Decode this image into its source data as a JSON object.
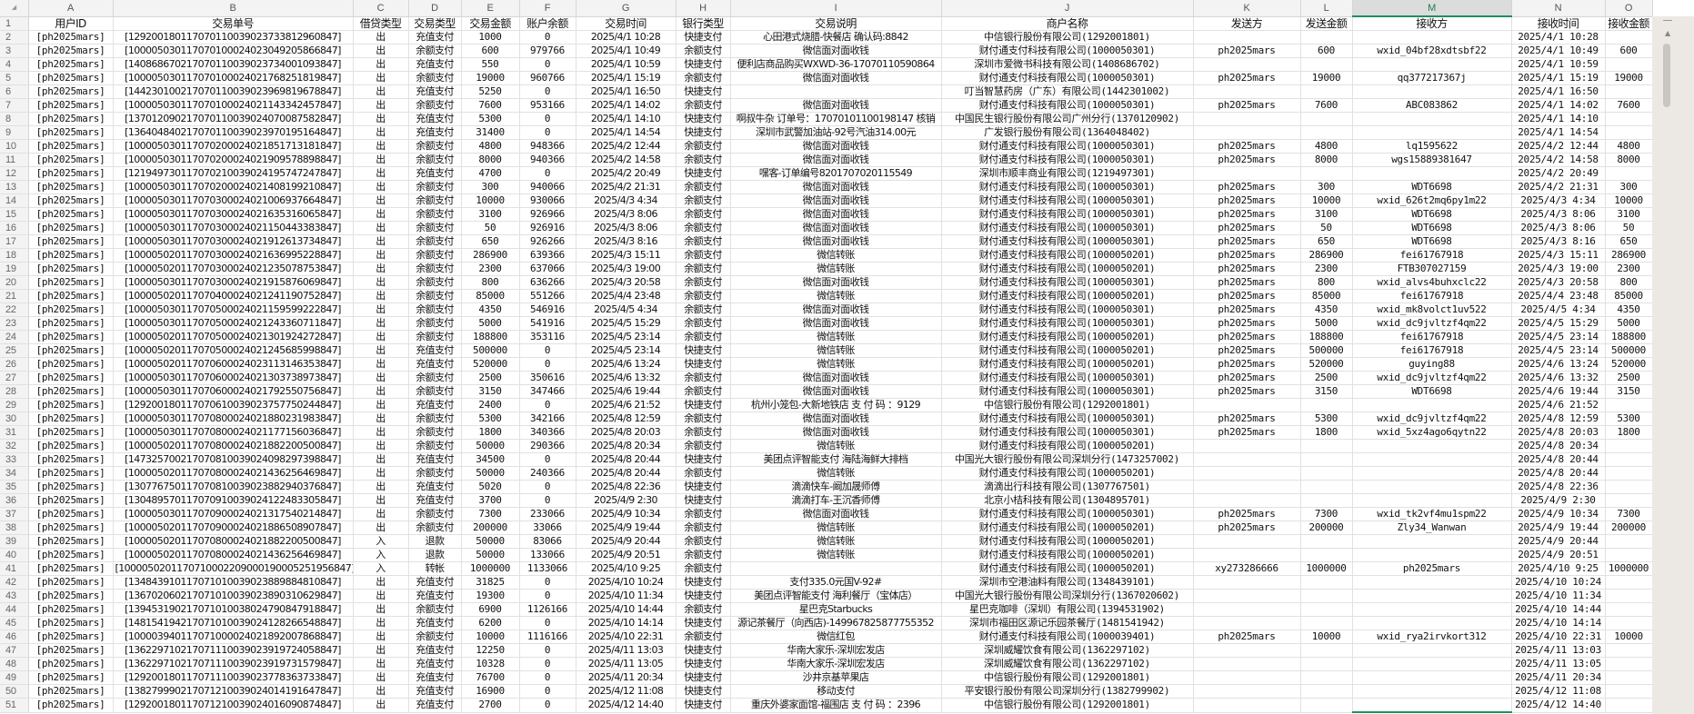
{
  "sheet": {
    "column_letters": [
      "A",
      "B",
      "C",
      "D",
      "E",
      "F",
      "G",
      "H",
      "I",
      "J",
      "K",
      "L",
      "M",
      "N",
      "O"
    ],
    "selected_column": "M",
    "headers": [
      "用户ID",
      "交易单号",
      "借贷类型",
      "交易类型",
      "交易金额",
      "账户余额",
      "交易时间",
      "银行类型",
      "交易说明",
      "商户名称",
      "发送方",
      "发送金额",
      "接收方",
      "接收时间",
      "接收金额"
    ],
    "rows": [
      [
        "[ph2025mars]",
        "[129200180117070110039023733812960847]",
        "出",
        "充值支付",
        "1000",
        "0",
        "2025/4/1 10:28",
        "快捷支付",
        "心田港式烧腊-快餐店 确认码:8842",
        "中信银行股份有限公司(1292001801)",
        "",
        "",
        "",
        "2025/4/1 10:28",
        ""
      ],
      [
        "[ph2025mars]",
        "[100005030117070100024023049205866847]",
        "出",
        "余额支付",
        "600",
        "979766",
        "2025/4/1 10:49",
        "余额支付",
        "微信面对面收钱",
        "财付通支付科技有限公司(1000050301)",
        "ph2025mars",
        "600",
        "wxid_04bf28xdtsbf22",
        "2025/4/1 10:49",
        "600"
      ],
      [
        "[ph2025mars]",
        "[140868670217070110039023734001093847]",
        "出",
        "充值支付",
        "550",
        "0",
        "2025/4/1 10:59",
        "快捷支付",
        "便利店商品购买WXWD-36-17070110590864",
        "深圳市爱微书科技有限公司(1408686702)",
        "",
        "",
        "",
        "2025/4/1 10:59",
        ""
      ],
      [
        "[ph2025mars]",
        "[100005030117070100024021768251819847]",
        "出",
        "余额支付",
        "19000",
        "960766",
        "2025/4/1 15:19",
        "余额支付",
        "微信面对面收钱",
        "财付通支付科技有限公司(1000050301)",
        "ph2025mars",
        "19000",
        "qq377217367j",
        "2025/4/1 15:19",
        "19000"
      ],
      [
        "[ph2025mars]",
        "[144230100217070110039023969819678847]",
        "出",
        "充值支付",
        "5250",
        "0",
        "2025/4/1 16:50",
        "快捷支付",
        "",
        "叮当智慧药房（广东）有限公司(1442301002)",
        "",
        "",
        "",
        "2025/4/1 16:50",
        ""
      ],
      [
        "[ph2025mars]",
        "[100005030117070100024021143342457847]",
        "出",
        "余额支付",
        "7600",
        "953166",
        "2025/4/1 14:02",
        "余额支付",
        "微信面对面收钱",
        "财付通支付科技有限公司(1000050301)",
        "ph2025mars",
        "7600",
        "ABC083862",
        "2025/4/1 14:02",
        "7600"
      ],
      [
        "[ph2025mars]",
        "[137012090217070110039024070087582847]",
        "出",
        "充值支付",
        "5300",
        "0",
        "2025/4/1 14:10",
        "快捷支付",
        "啊叔牛杂 订单号：17070101100198147 核销",
        "中国民生银行股份有限公司广州分行(1370120902)",
        "",
        "",
        "",
        "2025/4/1 14:10",
        ""
      ],
      [
        "[ph2025mars]",
        "[136404840217070110039023970195164847]",
        "出",
        "充值支付",
        "31400",
        "0",
        "2025/4/1 14:54",
        "快捷支付",
        "深圳市武警加油站-92号汽油314.00元",
        "广发银行股份有限公司(1364048402)",
        "",
        "",
        "",
        "2025/4/1 14:54",
        ""
      ],
      [
        "[ph2025mars]",
        "[100005030117070200024021851713181847]",
        "出",
        "余额支付",
        "4800",
        "948366",
        "2025/4/2 12:44",
        "余额支付",
        "微信面对面收钱",
        "财付通支付科技有限公司(1000050301)",
        "ph2025mars",
        "4800",
        "lq1595622",
        "2025/4/2 12:44",
        "4800"
      ],
      [
        "[ph2025mars]",
        "[100005030117070200024021909578898847]",
        "出",
        "余额支付",
        "8000",
        "940366",
        "2025/4/2 14:58",
        "余额支付",
        "微信面对面收钱",
        "财付通支付科技有限公司(1000050301)",
        "ph2025mars",
        "8000",
        "wgs15889381647",
        "2025/4/2 14:58",
        "8000"
      ],
      [
        "[ph2025mars]",
        "[121949730117070210039024195747247847]",
        "出",
        "充值支付",
        "4700",
        "0",
        "2025/4/2 20:49",
        "快捷支付",
        "嘿客-订单编号8201707020115549",
        "深圳市顺丰商业有限公司(1219497301)",
        "",
        "",
        "",
        "2025/4/2 20:49",
        ""
      ],
      [
        "[ph2025mars]",
        "[100005030117070200024021408199210847]",
        "出",
        "余额支付",
        "300",
        "940066",
        "2025/4/2 21:31",
        "余额支付",
        "微信面对面收钱",
        "财付通支付科技有限公司(1000050301)",
        "ph2025mars",
        "300",
        "WDT6698",
        "2025/4/2 21:31",
        "300"
      ],
      [
        "[ph2025mars]",
        "[100005030117070300024021006937664847]",
        "出",
        "余额支付",
        "10000",
        "930066",
        "2025/4/3 4:34",
        "余额支付",
        "微信面对面收钱",
        "财付通支付科技有限公司(1000050301)",
        "ph2025mars",
        "10000",
        "wxid_626t2mq6py1m22",
        "2025/4/3 4:34",
        "10000"
      ],
      [
        "[ph2025mars]",
        "[100005030117070300024021635316065847]",
        "出",
        "余额支付",
        "3100",
        "926966",
        "2025/4/3 8:06",
        "余额支付",
        "微信面对面收钱",
        "财付通支付科技有限公司(1000050301)",
        "ph2025mars",
        "3100",
        "WDT6698",
        "2025/4/3 8:06",
        "3100"
      ],
      [
        "[ph2025mars]",
        "[100005030117070300024021150443383847]",
        "出",
        "余额支付",
        "50",
        "926916",
        "2025/4/3 8:06",
        "余额支付",
        "微信面对面收钱",
        "财付通支付科技有限公司(1000050301)",
        "ph2025mars",
        "50",
        "WDT6698",
        "2025/4/3 8:06",
        "50"
      ],
      [
        "[ph2025mars]",
        "[100005030117070300024021912613734847]",
        "出",
        "余额支付",
        "650",
        "926266",
        "2025/4/3 8:16",
        "余额支付",
        "微信面对面收钱",
        "财付通支付科技有限公司(1000050301)",
        "ph2025mars",
        "650",
        "WDT6698",
        "2025/4/3 8:16",
        "650"
      ],
      [
        "[ph2025mars]",
        "[100005020117070300024021636995228847]",
        "出",
        "余额支付",
        "286900",
        "639366",
        "2025/4/3 15:11",
        "余额支付",
        "微信转账",
        "财付通支付科技有限公司(1000050201)",
        "ph2025mars",
        "286900",
        "fei61767918",
        "2025/4/3 15:11",
        "286900"
      ],
      [
        "[ph2025mars]",
        "[100005020117070300024021235078753847]",
        "出",
        "余额支付",
        "2300",
        "637066",
        "2025/4/3 19:00",
        "余额支付",
        "微信转账",
        "财付通支付科技有限公司(1000050201)",
        "ph2025mars",
        "2300",
        "FTB307027159",
        "2025/4/3 19:00",
        "2300"
      ],
      [
        "[ph2025mars]",
        "[100005030117070300024021915876069847]",
        "出",
        "余额支付",
        "800",
        "636266",
        "2025/4/3 20:58",
        "余额支付",
        "微信面对面收钱",
        "财付通支付科技有限公司(1000050301)",
        "ph2025mars",
        "800",
        "wxid_alvs4buhxclc22",
        "2025/4/3 20:58",
        "800"
      ],
      [
        "[ph2025mars]",
        "[100005020117070400024021241190752847]",
        "出",
        "余额支付",
        "85000",
        "551266",
        "2025/4/4 23:48",
        "余额支付",
        "微信转账",
        "财付通支付科技有限公司(1000050201)",
        "ph2025mars",
        "85000",
        "fei61767918",
        "2025/4/4 23:48",
        "85000"
      ],
      [
        "[ph2025mars]",
        "[100005030117070500024021159599222847]",
        "出",
        "余额支付",
        "4350",
        "546916",
        "2025/4/5 4:34",
        "余额支付",
        "微信面对面收钱",
        "财付通支付科技有限公司(1000050301)",
        "ph2025mars",
        "4350",
        "wxid_mk8volct1uv522",
        "2025/4/5 4:34",
        "4350"
      ],
      [
        "[ph2025mars]",
        "[100005030117070500024021243360711847]",
        "出",
        "余额支付",
        "5000",
        "541916",
        "2025/4/5 15:29",
        "余额支付",
        "微信面对面收钱",
        "财付通支付科技有限公司(1000050301)",
        "ph2025mars",
        "5000",
        "wxid_dc9jvltzf4qm22",
        "2025/4/5 15:29",
        "5000"
      ],
      [
        "[ph2025mars]",
        "[100005020117070500024021301924272847]",
        "出",
        "余额支付",
        "188800",
        "353116",
        "2025/4/5 23:14",
        "余额支付",
        "微信转账",
        "财付通支付科技有限公司(1000050201)",
        "ph2025mars",
        "188800",
        "fei61767918",
        "2025/4/5 23:14",
        "188800"
      ],
      [
        "[ph2025mars]",
        "[100005020117070500024021245685998847]",
        "出",
        "充值支付",
        "500000",
        "0",
        "2025/4/5 23:14",
        "快捷支付",
        "微信转账",
        "财付通支付科技有限公司(1000050201)",
        "ph2025mars",
        "500000",
        "fei61767918",
        "2025/4/5 23:14",
        "500000"
      ],
      [
        "[ph2025mars]",
        "[100005020117070600024023113146353847]",
        "出",
        "充值支付",
        "520000",
        "0",
        "2025/4/6 13:24",
        "快捷支付",
        "微信转账",
        "财付通支付科技有限公司(1000050201)",
        "ph2025mars",
        "520000",
        "guying88",
        "2025/4/6 13:24",
        "520000"
      ],
      [
        "[ph2025mars]",
        "[100005030117070600024021303738973847]",
        "出",
        "余额支付",
        "2500",
        "350616",
        "2025/4/6 13:32",
        "余额支付",
        "微信面对面收钱",
        "财付通支付科技有限公司(1000050301)",
        "ph2025mars",
        "2500",
        "wxid_dc9jvltzf4qm22",
        "2025/4/6 13:32",
        "2500"
      ],
      [
        "[ph2025mars]",
        "[100005030117070600024021792550756847]",
        "出",
        "余额支付",
        "3150",
        "347466",
        "2025/4/6 19:44",
        "余额支付",
        "微信面对面收钱",
        "财付通支付科技有限公司(1000050301)",
        "ph2025mars",
        "3150",
        "WDT6698",
        "2025/4/6 19:44",
        "3150"
      ],
      [
        "[ph2025mars]",
        "[129200180117070610039023757750244847]",
        "出",
        "充值支付",
        "2400",
        "0",
        "2025/4/6 21:52",
        "快捷支付",
        "杭州小笼包-大新地铁店 支 付 码 ：9129",
        "中信银行股份有限公司(1292001801)",
        "",
        "",
        "",
        "2025/4/6 21:52",
        ""
      ],
      [
        "[ph2025mars]",
        "[100005030117070800024021880231983847]",
        "出",
        "余额支付",
        "5300",
        "342166",
        "2025/4/8 12:59",
        "余额支付",
        "微信面对面收钱",
        "财付通支付科技有限公司(1000050301)",
        "ph2025mars",
        "5300",
        "wxid_dc9jvltzf4qm22",
        "2025/4/8 12:59",
        "5300"
      ],
      [
        "[ph2025mars]",
        "[100005030117070800024021177156036847]",
        "出",
        "余额支付",
        "1800",
        "340366",
        "2025/4/8 20:03",
        "余额支付",
        "微信面对面收钱",
        "财付通支付科技有限公司(1000050301)",
        "ph2025mars",
        "1800",
        "wxid_5xz4ago6qytn22",
        "2025/4/8 20:03",
        "1800"
      ],
      [
        "[ph2025mars]",
        "[100005020117070800024021882200500847]",
        "出",
        "余额支付",
        "50000",
        "290366",
        "2025/4/8 20:34",
        "余额支付",
        "微信转账",
        "财付通支付科技有限公司(1000050201)",
        "",
        "",
        "",
        "2025/4/8 20:34",
        ""
      ],
      [
        "[ph2025mars]",
        "[147325700217070810039024098297398847]",
        "出",
        "充值支付",
        "34500",
        "0",
        "2025/4/8 20:44",
        "快捷支付",
        "美团点评智能支付 海陆海鲜大排档",
        "中国光大银行股份有限公司深圳分行(1473257002)",
        "",
        "",
        "",
        "2025/4/8 20:44",
        ""
      ],
      [
        "[ph2025mars]",
        "[100005020117070800024021436256469847]",
        "出",
        "余额支付",
        "50000",
        "240366",
        "2025/4/8 20:44",
        "余额支付",
        "微信转账",
        "财付通支付科技有限公司(1000050201)",
        "",
        "",
        "",
        "2025/4/8 20:44",
        ""
      ],
      [
        "[ph2025mars]",
        "[130776750117070810039023882940376847]",
        "出",
        "充值支付",
        "5020",
        "0",
        "2025/4/8 22:36",
        "快捷支付",
        "滴滴快车-阚加晟师傅",
        "滴滴出行科技有限公司(1307767501)",
        "",
        "",
        "",
        "2025/4/8 22:36",
        ""
      ],
      [
        "[ph2025mars]",
        "[130489570117070910039024122483305847]",
        "出",
        "充值支付",
        "3700",
        "0",
        "2025/4/9 2:30",
        "快捷支付",
        "滴滴打车-王沉香师傅",
        "北京小桔科技有限公司(1304895701)",
        "",
        "",
        "",
        "2025/4/9 2:30",
        ""
      ],
      [
        "[ph2025mars]",
        "[100005030117070900024021317540214847]",
        "出",
        "余额支付",
        "7300",
        "233066",
        "2025/4/9 10:34",
        "余额支付",
        "微信面对面收钱",
        "财付通支付科技有限公司(1000050301)",
        "ph2025mars",
        "7300",
        "wxid_tk2vf4mu1spm22",
        "2025/4/9 10:34",
        "7300"
      ],
      [
        "[ph2025mars]",
        "[100005020117070900024021886508907847]",
        "出",
        "余额支付",
        "200000",
        "33066",
        "2025/4/9 19:44",
        "余额支付",
        "微信转账",
        "财付通支付科技有限公司(1000050201)",
        "ph2025mars",
        "200000",
        "Zly34_Wanwan",
        "2025/4/9 19:44",
        "200000"
      ],
      [
        "[ph2025mars]",
        "[100005020117070800024021882200500847]",
        "入",
        "退款",
        "50000",
        "83066",
        "2025/4/9 20:44",
        "余额支付",
        "微信转账",
        "财付通支付科技有限公司(1000050201)",
        "",
        "",
        "",
        "2025/4/9 20:44",
        ""
      ],
      [
        "[ph2025mars]",
        "[100005020117070800024021436256469847]",
        "入",
        "退款",
        "50000",
        "133066",
        "2025/4/9 20:51",
        "余额支付",
        "微信转账",
        "财付通支付科技有限公司(1000050201)",
        "",
        "",
        "",
        "2025/4/9 20:51",
        ""
      ],
      [
        "[ph2025mars]",
        "[1000050201170710002209000190005251956847]",
        "入",
        "转帐",
        "1000000",
        "1133066",
        "2025/4/10 9:25",
        "余额支付",
        "",
        "财付通支付科技有限公司(1000050201)",
        "xy273286666",
        "1000000",
        "ph2025mars",
        "2025/4/10 9:25",
        "1000000"
      ],
      [
        "[ph2025mars]",
        "[134843910117071010039023889884810847]",
        "出",
        "充值支付",
        "31825",
        "0",
        "2025/4/10 10:24",
        "快捷支付",
        "支付335.0元国V-92#",
        "深圳市空港油料有限公司(1348439101)",
        "",
        "",
        "",
        "2025/4/10 10:24",
        ""
      ],
      [
        "[ph2025mars]",
        "[136702060217071010039023890310629847]",
        "出",
        "充值支付",
        "19300",
        "0",
        "2025/4/10 11:34",
        "快捷支付",
        "美团点评智能支付 海利餐厅（宝体店）",
        "中国光大银行股份有限公司深圳分行(1367020602)",
        "",
        "",
        "",
        "2025/4/10 11:34",
        ""
      ],
      [
        "[ph2025mars]",
        "[139453190217071010038024790847918847]",
        "出",
        "余额支付",
        "6900",
        "1126166",
        "2025/4/10 14:44",
        "余额支付",
        "星巴克Starbucks",
        "星巴克咖啡（深圳）有限公司(1394531902)",
        "",
        "",
        "",
        "2025/4/10 14:44",
        ""
      ],
      [
        "[ph2025mars]",
        "[148154194217071010039024128266548847]",
        "出",
        "充值支付",
        "6200",
        "0",
        "2025/4/10 14:14",
        "快捷支付",
        "源记茶餐厅（向西店)-149967825877755352",
        "深圳市福田区源记乐园茶餐厅(1481541942)",
        "",
        "",
        "",
        "2025/4/10 14:14",
        ""
      ],
      [
        "[ph2025mars]",
        "[100003940117071000024021892007868847]",
        "出",
        "余额支付",
        "10000",
        "1116166",
        "2025/4/10 22:31",
        "余额支付",
        "微信红包",
        "财付通支付科技有限公司(1000039401)",
        "ph2025mars",
        "10000",
        "wxid_rya2irvkort312",
        "2025/4/10 22:31",
        "10000"
      ],
      [
        "[ph2025mars]",
        "[136229710217071110039023919724058847]",
        "出",
        "充值支付",
        "12250",
        "0",
        "2025/4/11 13:03",
        "快捷支付",
        "华南大家乐-深圳宏发店",
        "深圳威耀饮食有限公司(1362297102)",
        "",
        "",
        "",
        "2025/4/11 13:03",
        ""
      ],
      [
        "[ph2025mars]",
        "[136229710217071110039023919731579847]",
        "出",
        "充值支付",
        "10328",
        "0",
        "2025/4/11 13:05",
        "快捷支付",
        "华南大家乐-深圳宏发店",
        "深圳威耀饮食有限公司(1362297102)",
        "",
        "",
        "",
        "2025/4/11 13:05",
        ""
      ],
      [
        "[ph2025mars]",
        "[129200180117071110039023778363733847]",
        "出",
        "充值支付",
        "76700",
        "0",
        "2025/4/11 20:34",
        "快捷支付",
        "沙井京基苹果店",
        "中信银行股份有限公司(1292001801)",
        "",
        "",
        "",
        "2025/4/11 20:34",
        ""
      ],
      [
        "[ph2025mars]",
        "[138279990217071210039024014191647847]",
        "出",
        "充值支付",
        "16900",
        "0",
        "2025/4/12 11:08",
        "快捷支付",
        "移动支付",
        "平安银行股份有限公司深圳分行(1382799902)",
        "",
        "",
        "",
        "2025/4/12 11:08",
        ""
      ],
      [
        "[ph2025mars]",
        "[129200180117071210039024016090874847]",
        "出",
        "充值支付",
        "2700",
        "0",
        "2025/4/12 14:40",
        "快捷支付",
        "重庆外婆家面馆-福围店 支 付 码 ：2396",
        "中信银行股份有限公司(1292001801)",
        "",
        "",
        "",
        "2025/4/12 14:40",
        ""
      ]
    ]
  },
  "colors": {
    "selection_accent": "#1e8f5e",
    "header_bg": "#f3f3f3",
    "gridline": "#e1e1e1"
  }
}
